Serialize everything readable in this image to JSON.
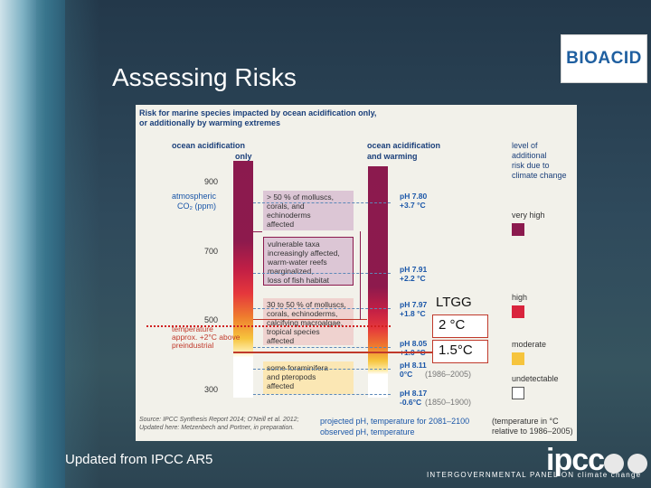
{
  "title": "Assessing Risks",
  "bioacid_logo": "BIOACID",
  "figure": {
    "heading1": "Risk for marine species impacted by ocean acidification only,",
    "heading2": "or additionally by warming extremes",
    "col_left_1": "ocean acidification",
    "col_left_2": "only",
    "col_right_1": "ocean acidification",
    "col_right_2": "and warming",
    "co2_label_1": "atmospheric",
    "co2_label_2": "CO₂ (ppm)",
    "co2_ticks": [
      "900",
      "700",
      "500",
      "300"
    ],
    "temp_label_1": "temperature",
    "temp_label_2": "approx. +2°C above",
    "temp_label_3": "preindustrial",
    "boxes": [
      {
        "l1": "> 50 % of molluscs,",
        "l2": "corals, and",
        "l3": "echinoderms",
        "l4": "affected",
        "l5": ""
      },
      {
        "l1": "vulnerable taxa",
        "l2": "increasingly affected,",
        "l3": "warm-water reefs",
        "l4": "marginalized,",
        "l5": "loss of fish habitat"
      },
      {
        "l1": "30 to 50 % of molluscs,",
        "l2": "corals, echinoderms,",
        "l3": "calcifying macroalgae,",
        "l4": "tropical species",
        "l5": "affected"
      },
      {
        "l1": "some foraminifera",
        "l2": "and pteropods",
        "l3": "affected",
        "l4": "",
        "l5": ""
      }
    ],
    "ph_labels": [
      {
        "ph": "pH 7.80",
        "t": "+3.7 °C"
      },
      {
        "ph": "pH 7.91",
        "t": "+2.2 °C"
      },
      {
        "ph": "pH 7.97",
        "t": "+1.8 °C"
      },
      {
        "ph": "pH 8.05",
        "t": "+1.0 °C"
      },
      {
        "ph": "pH 8.11",
        "t": "0°C"
      },
      {
        "ph": "pH 8.17",
        "t": "-0.6°C"
      }
    ],
    "period_1": "(1986–2005)",
    "period_2": "(1850–1900)",
    "legend_title_1": "level of",
    "legend_title_2": "additional",
    "legend_title_3": "risk due to",
    "legend_title_4": "climate change",
    "legend": [
      {
        "label": "very high",
        "color": "#8b1a4e"
      },
      {
        "label": "high",
        "color": "#d9243d"
      },
      {
        "label": "moderate",
        "color": "#f6c43d"
      },
      {
        "label": "undetectable",
        "color": "#ffffff"
      }
    ],
    "source_1": "Source: IPCC Synthesis Report 2014; O'Neill et al. 2012;",
    "source_2": "Updated here: Metzenbech and Portner, in preparation.",
    "projected": "projected pH, temperature for 2081–2100",
    "observed": "observed pH, temperature",
    "note_1": "(temperature in °C",
    "note_2": "relative to 1986–2005)"
  },
  "overlay": {
    "ltgg": "LTGG",
    "t2": "2 °C",
    "t15": "1.5°C"
  },
  "footer": {
    "updated": "Updated from IPCC AR5",
    "ipcc": "ipcc",
    "ipcc_sub": "INTERGOVERNMENTAL PANEL ON climate change"
  }
}
